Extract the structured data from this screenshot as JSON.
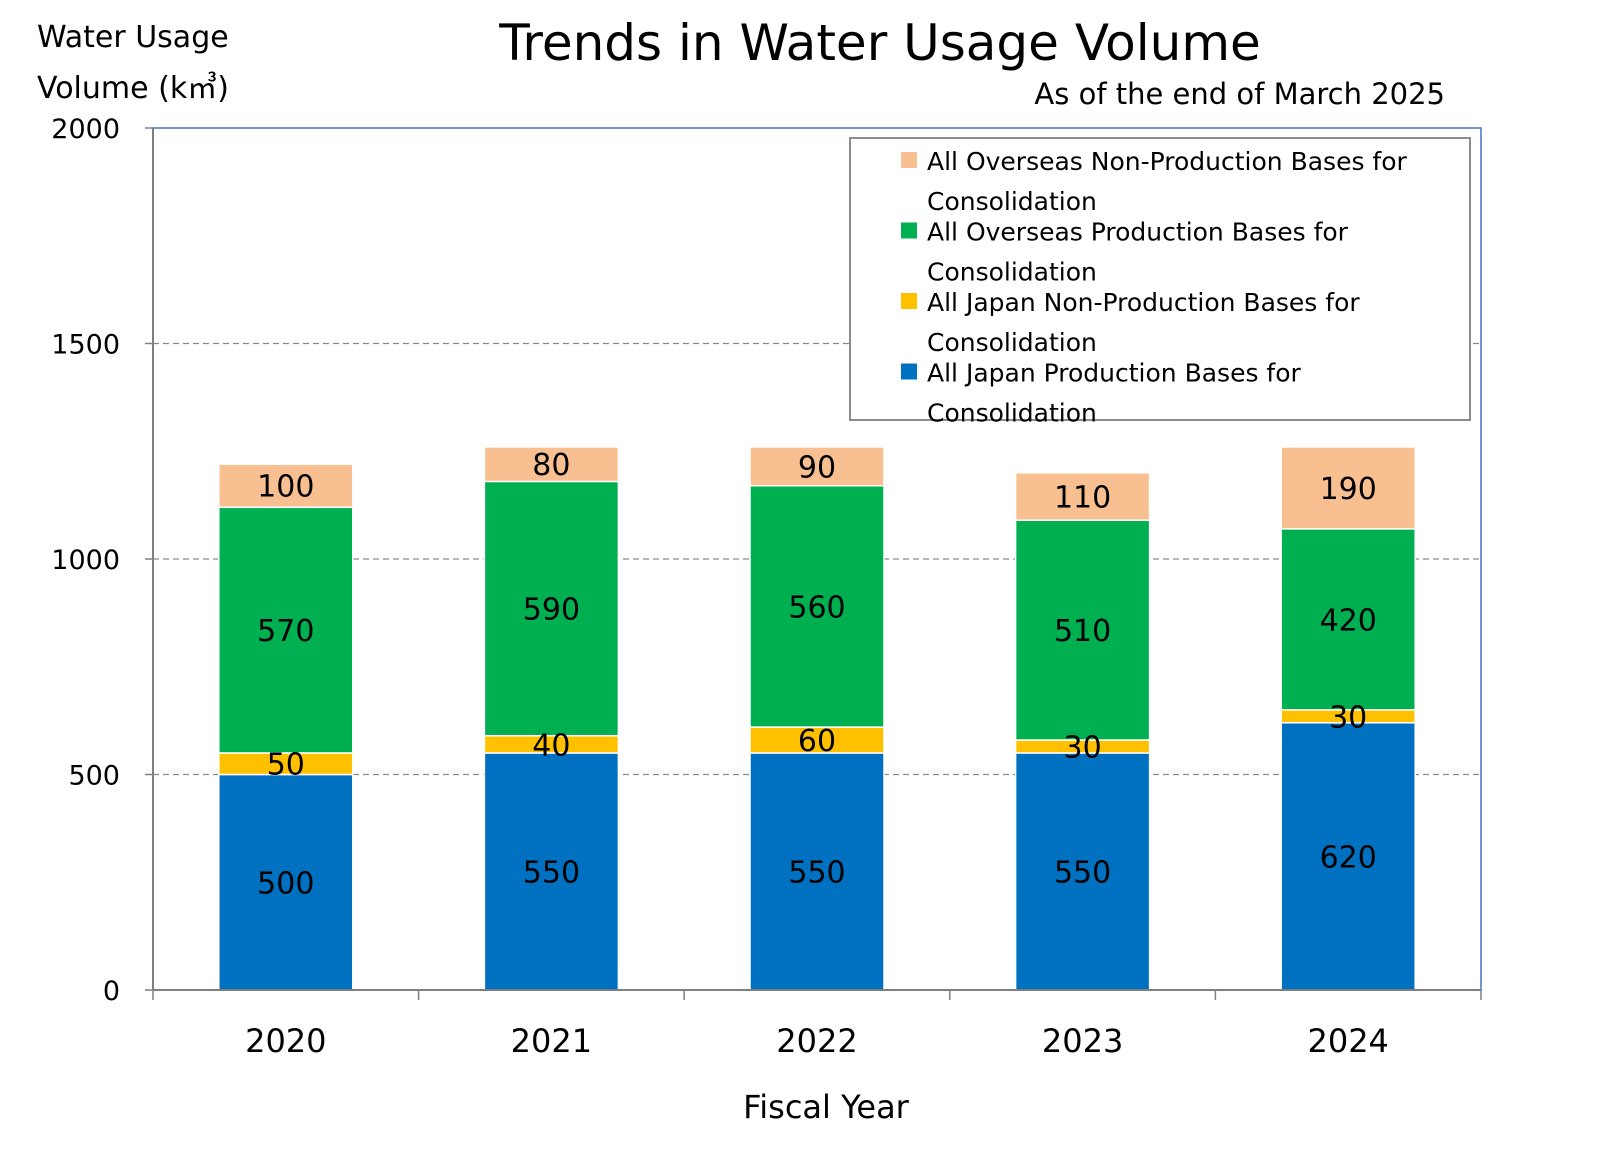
{
  "chart_data": {
    "type": "bar",
    "stacked": true,
    "title": "Trends in Water Usage Volume",
    "subtitle": "As of the end of March 2025",
    "ylabel_line1": "Water Usage",
    "ylabel_line2": "Volume (k㎥)",
    "xlabel": "Fiscal Year",
    "ylim": [
      0,
      2000
    ],
    "yticks": [
      0,
      500,
      1000,
      1500,
      2000
    ],
    "ytick_labels": [
      "0",
      "500",
      "1000",
      "1500",
      "2000"
    ],
    "grid": "horizontal dashed",
    "legend_position": "top-right",
    "categories": [
      "2020",
      "2021",
      "2022",
      "2023",
      "2024"
    ],
    "series": [
      {
        "name_lines": [
          "All Japan Production Bases for",
          "Consolidation"
        ],
        "color": "#0070C0",
        "values": [
          500,
          550,
          550,
          550,
          620
        ],
        "labels": [
          "500",
          "550",
          "550",
          "550",
          "620"
        ]
      },
      {
        "name_lines": [
          "All Japan Non-Production Bases for",
          "Consolidation"
        ],
        "color": "#FFC000",
        "values": [
          50,
          40,
          60,
          30,
          30
        ],
        "labels": [
          "50",
          "40",
          "60",
          "30",
          "30"
        ]
      },
      {
        "name_lines": [
          "All Overseas Production Bases for",
          "Consolidation"
        ],
        "color": "#00B050",
        "values": [
          570,
          590,
          560,
          510,
          420
        ],
        "labels": [
          "570",
          "590",
          "560",
          "510",
          "420"
        ]
      },
      {
        "name_lines": [
          "All Overseas Non-Production Bases for",
          "Consolidation"
        ],
        "color": "#F8C090",
        "values": [
          100,
          80,
          90,
          110,
          190
        ],
        "labels": [
          "100",
          "80",
          "90",
          "110",
          "190"
        ]
      }
    ]
  }
}
